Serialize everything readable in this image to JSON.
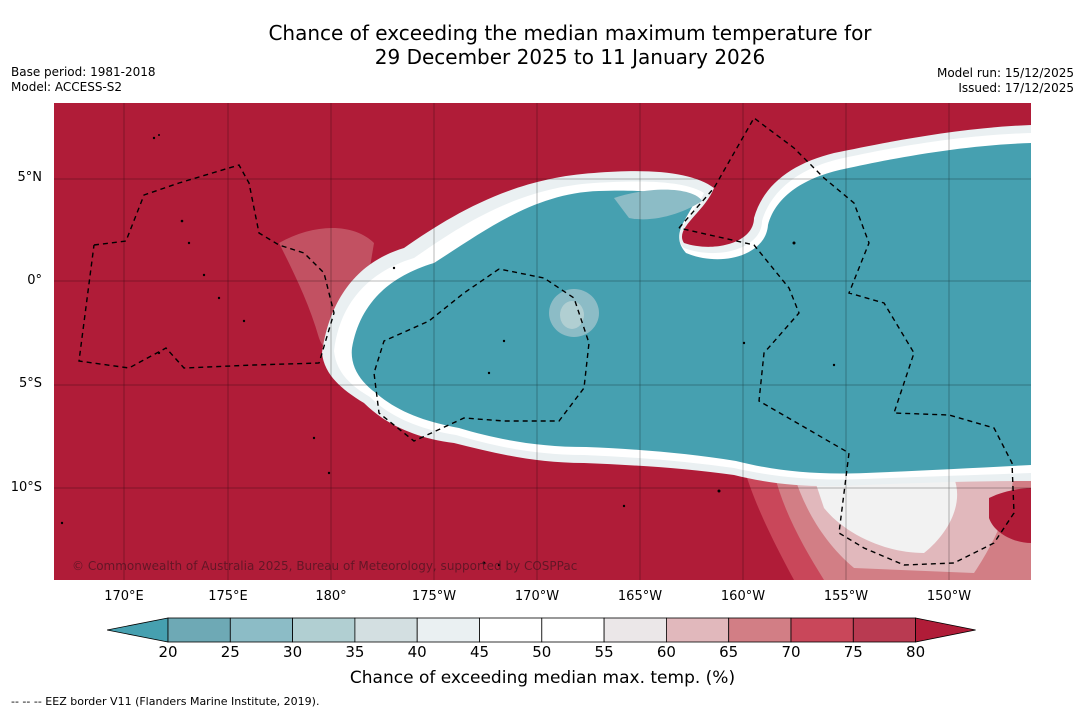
{
  "title": {
    "line1": "Chance of exceeding the median maximum temperature for",
    "line2": "29 December 2025 to 11 January 2026"
  },
  "meta": {
    "base_period": "Base period: 1981-2018",
    "model": "Model: ACCESS-S2",
    "model_run": "Model run: 15/12/2025",
    "issued": "Issued: 17/12/2025"
  },
  "map": {
    "lat_labels": [
      "5°N",
      "0°",
      "5°S",
      "10°S"
    ],
    "lon_labels": [
      "170°E",
      "175°E",
      "180°",
      "175°W",
      "170°W",
      "165°W",
      "160°W",
      "155°W",
      "150°W"
    ],
    "copyright": "© Commonwealth of Australia 2025, Bureau of Meteorology, supported by COSPPac",
    "colors": {
      "hot": "#b01c38",
      "warm1": "#c9475a",
      "warm2": "#d27e85",
      "warm3": "#e1b8bc",
      "neutral": "#ffffff",
      "cool": "#46a0b0",
      "border": "#000000"
    }
  },
  "colorbar": {
    "ticks": [
      "20",
      "25",
      "30",
      "35",
      "40",
      "45",
      "50",
      "55",
      "60",
      "65",
      "70",
      "75",
      "80"
    ],
    "colors": [
      "#46a0b0",
      "#6ea9b5",
      "#8cbcc6",
      "#b1cfd2",
      "#d3dfe1",
      "#eaf0f2",
      "#ffffff",
      "#ffffff",
      "#ebe7e8",
      "#e1b8bc",
      "#d27e85",
      "#c9475a",
      "#b93a51",
      "#b01c38"
    ],
    "label": "Chance of exceeding median max. temp. (%)"
  },
  "footnote": "-- -- -- EEZ border V11 (Flanders Marine Institute, 2019)."
}
